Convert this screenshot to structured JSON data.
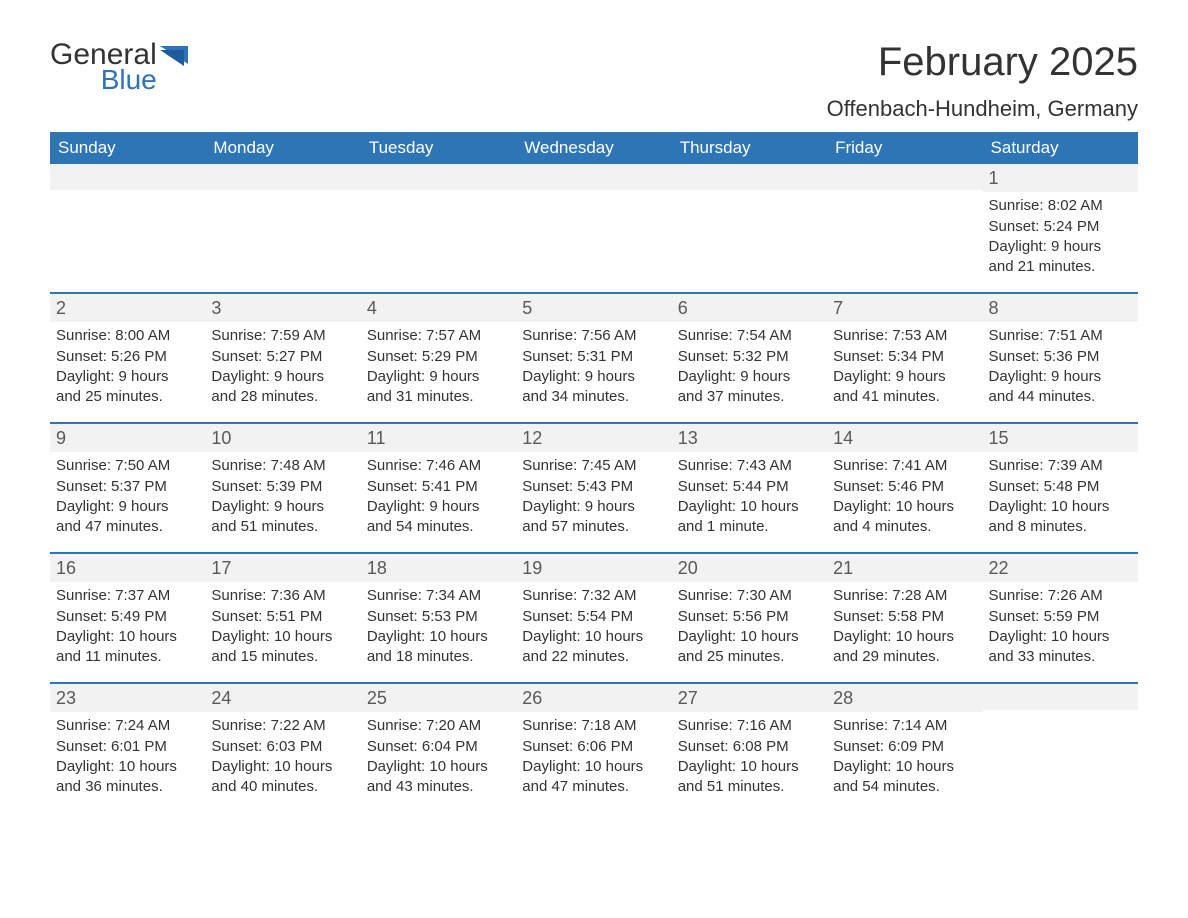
{
  "brand": {
    "word1": "General",
    "word2": "Blue",
    "text_color": "#333333",
    "accent_color": "#2e75b6"
  },
  "title": {
    "month_year": "February 2025",
    "location": "Offenbach-Hundheim, Germany"
  },
  "colors": {
    "header_bg": "#2e75b6",
    "header_text": "#ffffff",
    "band_bg": "#f2f2f2",
    "day_num_color": "#595959",
    "body_text": "#333333",
    "rule": "#2e75b6",
    "page_bg": "#ffffff"
  },
  "day_names": [
    "Sunday",
    "Monday",
    "Tuesday",
    "Wednesday",
    "Thursday",
    "Friday",
    "Saturday"
  ],
  "weeks": [
    [
      null,
      null,
      null,
      null,
      null,
      null,
      {
        "n": "1",
        "sr": "Sunrise: 8:02 AM",
        "ss": "Sunset: 5:24 PM",
        "dl1": "Daylight: 9 hours",
        "dl2": "and 21 minutes."
      }
    ],
    [
      {
        "n": "2",
        "sr": "Sunrise: 8:00 AM",
        "ss": "Sunset: 5:26 PM",
        "dl1": "Daylight: 9 hours",
        "dl2": "and 25 minutes."
      },
      {
        "n": "3",
        "sr": "Sunrise: 7:59 AM",
        "ss": "Sunset: 5:27 PM",
        "dl1": "Daylight: 9 hours",
        "dl2": "and 28 minutes."
      },
      {
        "n": "4",
        "sr": "Sunrise: 7:57 AM",
        "ss": "Sunset: 5:29 PM",
        "dl1": "Daylight: 9 hours",
        "dl2": "and 31 minutes."
      },
      {
        "n": "5",
        "sr": "Sunrise: 7:56 AM",
        "ss": "Sunset: 5:31 PM",
        "dl1": "Daylight: 9 hours",
        "dl2": "and 34 minutes."
      },
      {
        "n": "6",
        "sr": "Sunrise: 7:54 AM",
        "ss": "Sunset: 5:32 PM",
        "dl1": "Daylight: 9 hours",
        "dl2": "and 37 minutes."
      },
      {
        "n": "7",
        "sr": "Sunrise: 7:53 AM",
        "ss": "Sunset: 5:34 PM",
        "dl1": "Daylight: 9 hours",
        "dl2": "and 41 minutes."
      },
      {
        "n": "8",
        "sr": "Sunrise: 7:51 AM",
        "ss": "Sunset: 5:36 PM",
        "dl1": "Daylight: 9 hours",
        "dl2": "and 44 minutes."
      }
    ],
    [
      {
        "n": "9",
        "sr": "Sunrise: 7:50 AM",
        "ss": "Sunset: 5:37 PM",
        "dl1": "Daylight: 9 hours",
        "dl2": "and 47 minutes."
      },
      {
        "n": "10",
        "sr": "Sunrise: 7:48 AM",
        "ss": "Sunset: 5:39 PM",
        "dl1": "Daylight: 9 hours",
        "dl2": "and 51 minutes."
      },
      {
        "n": "11",
        "sr": "Sunrise: 7:46 AM",
        "ss": "Sunset: 5:41 PM",
        "dl1": "Daylight: 9 hours",
        "dl2": "and 54 minutes."
      },
      {
        "n": "12",
        "sr": "Sunrise: 7:45 AM",
        "ss": "Sunset: 5:43 PM",
        "dl1": "Daylight: 9 hours",
        "dl2": "and 57 minutes."
      },
      {
        "n": "13",
        "sr": "Sunrise: 7:43 AM",
        "ss": "Sunset: 5:44 PM",
        "dl1": "Daylight: 10 hours",
        "dl2": "and 1 minute."
      },
      {
        "n": "14",
        "sr": "Sunrise: 7:41 AM",
        "ss": "Sunset: 5:46 PM",
        "dl1": "Daylight: 10 hours",
        "dl2": "and 4 minutes."
      },
      {
        "n": "15",
        "sr": "Sunrise: 7:39 AM",
        "ss": "Sunset: 5:48 PM",
        "dl1": "Daylight: 10 hours",
        "dl2": "and 8 minutes."
      }
    ],
    [
      {
        "n": "16",
        "sr": "Sunrise: 7:37 AM",
        "ss": "Sunset: 5:49 PM",
        "dl1": "Daylight: 10 hours",
        "dl2": "and 11 minutes."
      },
      {
        "n": "17",
        "sr": "Sunrise: 7:36 AM",
        "ss": "Sunset: 5:51 PM",
        "dl1": "Daylight: 10 hours",
        "dl2": "and 15 minutes."
      },
      {
        "n": "18",
        "sr": "Sunrise: 7:34 AM",
        "ss": "Sunset: 5:53 PM",
        "dl1": "Daylight: 10 hours",
        "dl2": "and 18 minutes."
      },
      {
        "n": "19",
        "sr": "Sunrise: 7:32 AM",
        "ss": "Sunset: 5:54 PM",
        "dl1": "Daylight: 10 hours",
        "dl2": "and 22 minutes."
      },
      {
        "n": "20",
        "sr": "Sunrise: 7:30 AM",
        "ss": "Sunset: 5:56 PM",
        "dl1": "Daylight: 10 hours",
        "dl2": "and 25 minutes."
      },
      {
        "n": "21",
        "sr": "Sunrise: 7:28 AM",
        "ss": "Sunset: 5:58 PM",
        "dl1": "Daylight: 10 hours",
        "dl2": "and 29 minutes."
      },
      {
        "n": "22",
        "sr": "Sunrise: 7:26 AM",
        "ss": "Sunset: 5:59 PM",
        "dl1": "Daylight: 10 hours",
        "dl2": "and 33 minutes."
      }
    ],
    [
      {
        "n": "23",
        "sr": "Sunrise: 7:24 AM",
        "ss": "Sunset: 6:01 PM",
        "dl1": "Daylight: 10 hours",
        "dl2": "and 36 minutes."
      },
      {
        "n": "24",
        "sr": "Sunrise: 7:22 AM",
        "ss": "Sunset: 6:03 PM",
        "dl1": "Daylight: 10 hours",
        "dl2": "and 40 minutes."
      },
      {
        "n": "25",
        "sr": "Sunrise: 7:20 AM",
        "ss": "Sunset: 6:04 PM",
        "dl1": "Daylight: 10 hours",
        "dl2": "and 43 minutes."
      },
      {
        "n": "26",
        "sr": "Sunrise: 7:18 AM",
        "ss": "Sunset: 6:06 PM",
        "dl1": "Daylight: 10 hours",
        "dl2": "and 47 minutes."
      },
      {
        "n": "27",
        "sr": "Sunrise: 7:16 AM",
        "ss": "Sunset: 6:08 PM",
        "dl1": "Daylight: 10 hours",
        "dl2": "and 51 minutes."
      },
      {
        "n": "28",
        "sr": "Sunrise: 7:14 AM",
        "ss": "Sunset: 6:09 PM",
        "dl1": "Daylight: 10 hours",
        "dl2": "and 54 minutes."
      },
      null
    ]
  ]
}
